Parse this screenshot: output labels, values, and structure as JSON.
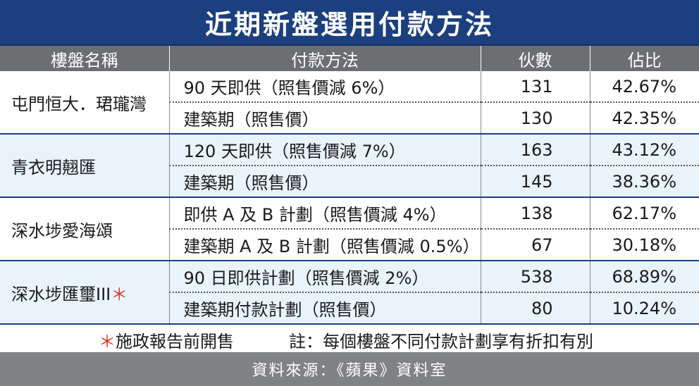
{
  "title": "近期新盤選用付款方法",
  "headers": {
    "estate": "樓盤名稱",
    "method": "付款方法",
    "count": "伙數",
    "ratio": "佔比"
  },
  "estates": [
    {
      "name": "屯門恒大．珺瓏灣",
      "asterisk": "",
      "rows": [
        {
          "method": "90 天即供（照售價減 6%）",
          "count": "131",
          "ratio": "42.67%"
        },
        {
          "method": "建築期（照售價）",
          "count": "130",
          "ratio": "42.35%"
        }
      ]
    },
    {
      "name": "青衣明翹匯",
      "asterisk": "",
      "rows": [
        {
          "method": "120 天即供（照售價減 7%）",
          "count": "163",
          "ratio": "43.12%"
        },
        {
          "method": "建築期（照售價）",
          "count": "145",
          "ratio": "38.36%"
        }
      ]
    },
    {
      "name": "深水埗愛海頌",
      "asterisk": "",
      "rows": [
        {
          "method": "即供 A 及 B 計劃（照售價減 4%）",
          "count": "138",
          "ratio": "62.17%"
        },
        {
          "method": "建築期 A 及 B 計劃（照售價減 0.5%）",
          "count": "67",
          "ratio": "30.18%"
        }
      ]
    },
    {
      "name": "深水埗匯璽III",
      "asterisk": "＊",
      "rows": [
        {
          "method": "90 日即供計劃（照售價減 2%）",
          "count": "538",
          "ratio": "68.89%"
        },
        {
          "method": "建築期付款計劃（照售價）",
          "count": "80",
          "ratio": "10.24%"
        }
      ]
    }
  ],
  "footnote": {
    "asterisk": "＊",
    "left_text": "施政報告前開售",
    "right_text": "註：每個樓盤不同付款計劃享有折扣有別"
  },
  "source": "資料來源：《蘋果》資料室",
  "colors": {
    "title_bg": "#1b3f7f",
    "header_bg": "#6c6e72",
    "band_light_blue": "#e9f3fb",
    "asterisk_red": "#e2312a",
    "source_bg": "#808285"
  }
}
